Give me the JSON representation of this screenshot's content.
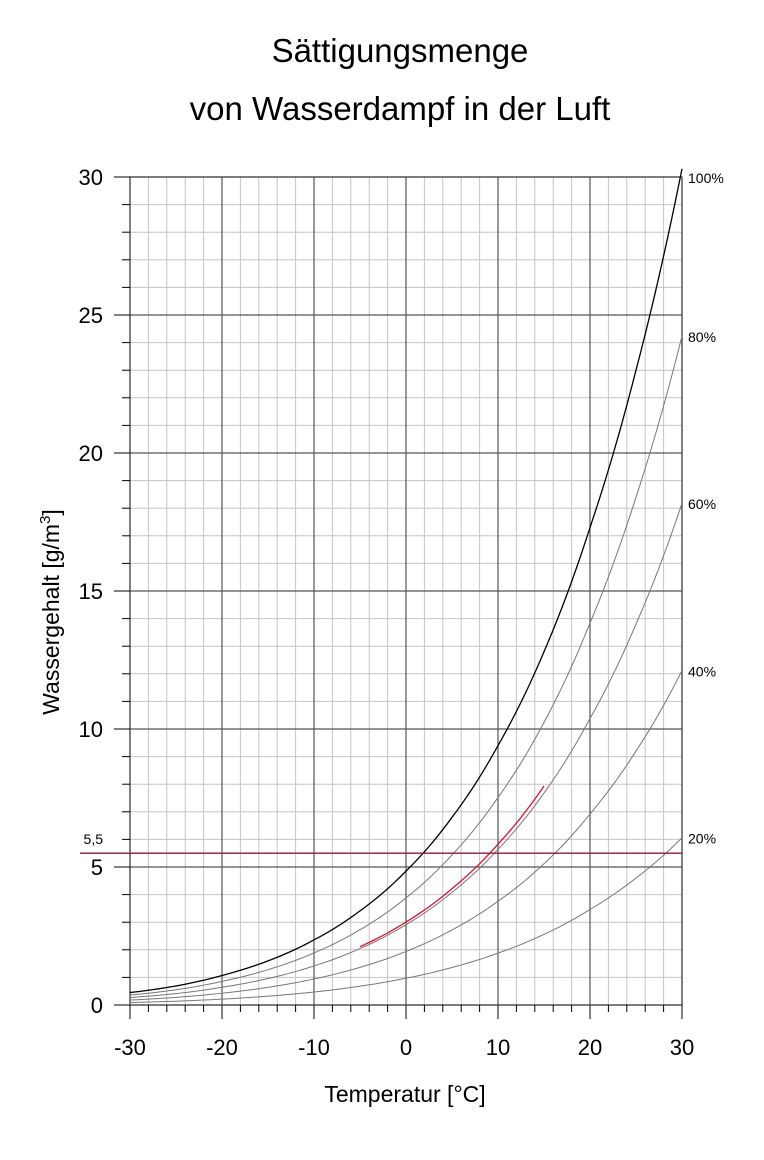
{
  "chart_data": {
    "type": "line",
    "title_line1": "Sättigungsmenge",
    "title_line2": "von Wasserdampf in der Luft",
    "xlabel": "Temperatur [°C]",
    "ylabel_main": "Wassergehalt [g/m",
    "ylabel_sup": "3",
    "ylabel_close": "]",
    "xlim": [
      -30,
      30
    ],
    "ylim": [
      0,
      30
    ],
    "x_ticks": [
      -30,
      -20,
      -10,
      0,
      10,
      20,
      30
    ],
    "x_tick_labels": [
      "-30",
      "-20",
      "-10",
      "0",
      "10",
      "20",
      "30"
    ],
    "y_ticks": [
      0,
      5,
      10,
      15,
      20,
      25,
      30
    ],
    "y_tick_labels": [
      "0",
      "5",
      "10",
      "15",
      "20",
      "25",
      "30"
    ],
    "grid": true,
    "x": [
      -30,
      -25,
      -20,
      -15,
      -10,
      -5,
      0,
      5,
      10,
      15,
      20,
      25,
      30
    ],
    "saturation_100": [
      0.45,
      0.69,
      1.07,
      1.6,
      2.36,
      3.41,
      4.85,
      6.8,
      9.4,
      12.8,
      17.3,
      23.0,
      30.3
    ],
    "series": [
      {
        "name": "100%",
        "factor": 1.0,
        "color": "#000000"
      },
      {
        "name": "80%",
        "factor": 0.8,
        "color": "#777777"
      },
      {
        "name": "60%",
        "factor": 0.6,
        "color": "#777777"
      },
      {
        "name": "40%",
        "factor": 0.4,
        "color": "#777777"
      },
      {
        "name": "20%",
        "factor": 0.2,
        "color": "#777777"
      }
    ],
    "reference_line": {
      "y": 5.5,
      "label": "5,5",
      "color": "#8b1a3a"
    },
    "highlight_curve": {
      "x_range": [
        -5,
        15
      ],
      "factor": 0.62,
      "color": "#e0102a"
    }
  }
}
